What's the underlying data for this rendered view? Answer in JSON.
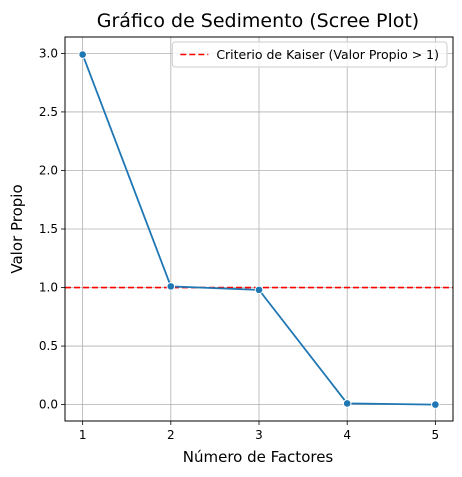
{
  "chart_data": {
    "type": "line",
    "title": "Gráfico de Sedimento (Scree Plot)",
    "xlabel": "Número de Factores",
    "ylabel": "Valor Propio",
    "x": [
      1,
      2,
      3,
      4,
      5
    ],
    "x_ticks": [
      "1",
      "2",
      "3",
      "4",
      "5"
    ],
    "xlim": [
      0.8,
      5.2
    ],
    "y_ticks": [
      "0.0",
      "0.5",
      "1.0",
      "1.5",
      "2.0",
      "2.5",
      "3.0"
    ],
    "ylim": [
      -0.14,
      3.14
    ],
    "series": [
      {
        "values": [
          2.99,
          1.01,
          0.98,
          0.01,
          0.0
        ],
        "color": "#1f77b4",
        "marker": "circle"
      }
    ],
    "reference_line": {
      "orientation": "horizontal",
      "y": 1.0,
      "style": "dashed",
      "color": "#ff0000",
      "label": "Criterio de Kaiser (Valor Propio > 1)"
    },
    "grid": true,
    "legend_position": "top-right"
  }
}
